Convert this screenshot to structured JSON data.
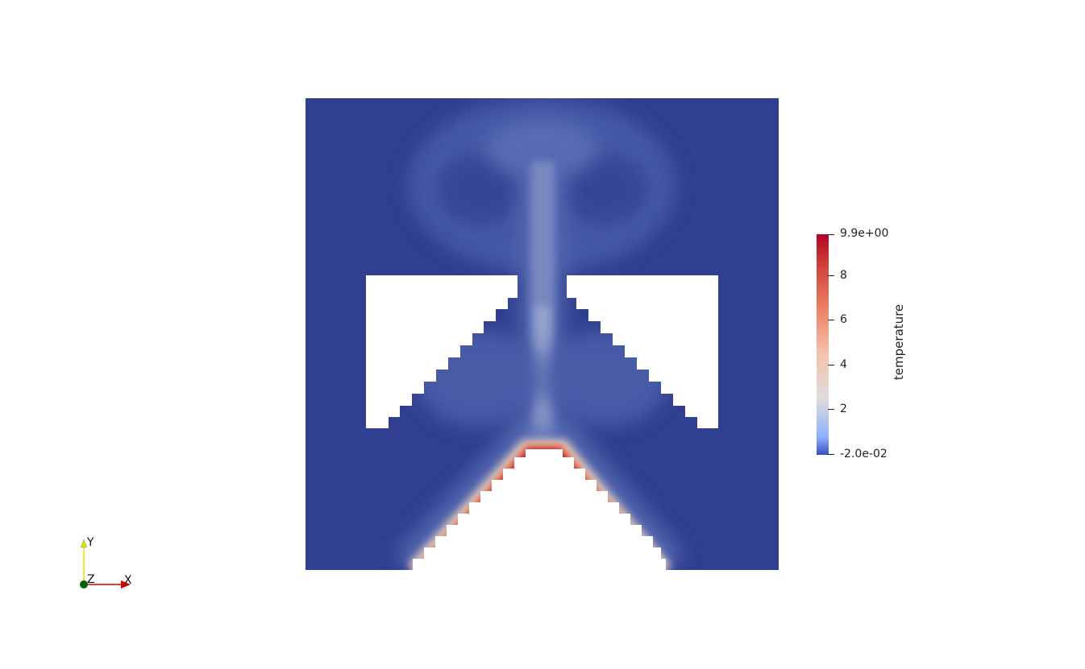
{
  "view": {
    "background": "#ffffff",
    "cold_color": "#303f8f",
    "hot_color": "#b40426"
  },
  "colorbar": {
    "title": "temperature",
    "max_label": "9.9e+00",
    "min_label": "-2.0e-02",
    "ticks": [
      "8",
      "6",
      "4",
      "2"
    ],
    "range": [
      -0.02,
      9.9
    ],
    "colormap": "cool-to-warm"
  },
  "triad": {
    "x_label": "X",
    "y_label": "Y",
    "z_label": "Z",
    "x_color": "#d40000",
    "y_color": "#e0e000",
    "z_color": "#006400"
  }
}
